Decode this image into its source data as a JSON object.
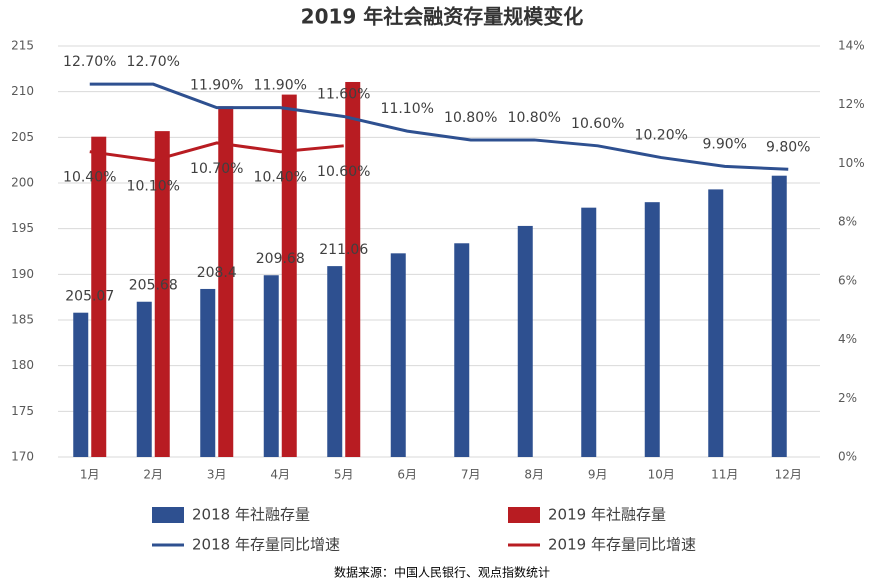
{
  "chart_data": {
    "type": "bar_line",
    "title": "2019 年社会融资存量规模变化",
    "source": "数据来源：中国人民银行、观点指数统计",
    "categories": [
      "1月",
      "2月",
      "3月",
      "4月",
      "5月",
      "6月",
      "7月",
      "8月",
      "9月",
      "10月",
      "11月",
      "12月"
    ],
    "ylim": [
      170,
      215
    ],
    "yticks": [
      170,
      175,
      180,
      185,
      190,
      195,
      200,
      205,
      210,
      215
    ],
    "y2lim": [
      0,
      14
    ],
    "y2ticks": [
      {
        "value": 0,
        "label": "0%"
      },
      {
        "value": 2,
        "label": "2%"
      },
      {
        "value": 4,
        "label": "4%"
      },
      {
        "value": 6,
        "label": "6%"
      },
      {
        "value": 8,
        "label": "8%"
      },
      {
        "value": 10,
        "label": "10%"
      },
      {
        "value": 12,
        "label": "12%"
      },
      {
        "value": 14,
        "label": "14%"
      }
    ],
    "grid": true,
    "legend": "bottom",
    "series": [
      {
        "name": "2018 年社融存量",
        "kind": "bar",
        "color": "#2e5090",
        "values": [
          185.8,
          187.0,
          188.4,
          189.9,
          190.9,
          192.3,
          193.4,
          195.3,
          197.3,
          197.9,
          199.3,
          200.8
        ]
      },
      {
        "name": "2019 年社融存量",
        "kind": "bar",
        "color": "#b81c22",
        "values": [
          205.07,
          205.68,
          208.4,
          209.68,
          211.06,
          null,
          null,
          null,
          null,
          null,
          null,
          null
        ]
      },
      {
        "name": "2018 年存量同比增速",
        "kind": "line",
        "axis": "y2",
        "color": "#2e5090",
        "values": [
          12.7,
          12.7,
          11.9,
          11.9,
          11.6,
          11.1,
          10.8,
          10.8,
          10.6,
          10.2,
          9.9,
          9.8
        ],
        "value_labels": [
          "12.70%",
          "12.70%",
          "11.90%",
          "11.90%",
          "11.60%",
          "11.10%",
          "10.80%",
          "10.80%",
          "10.60%",
          "10.20%",
          "9.90%",
          "9.80%"
        ]
      },
      {
        "name": "2019 年存量同比增速",
        "kind": "line",
        "axis": "y2",
        "color": "#b81c22",
        "values": [
          10.4,
          10.1,
          10.7,
          10.4,
          10.6,
          null,
          null,
          null,
          null,
          null,
          null,
          null
        ],
        "value_labels": [
          "10.40%",
          "10.10%",
          "10.70%",
          "10.40%",
          "10.60%",
          null,
          null,
          null,
          null,
          null,
          null,
          null
        ]
      }
    ]
  }
}
